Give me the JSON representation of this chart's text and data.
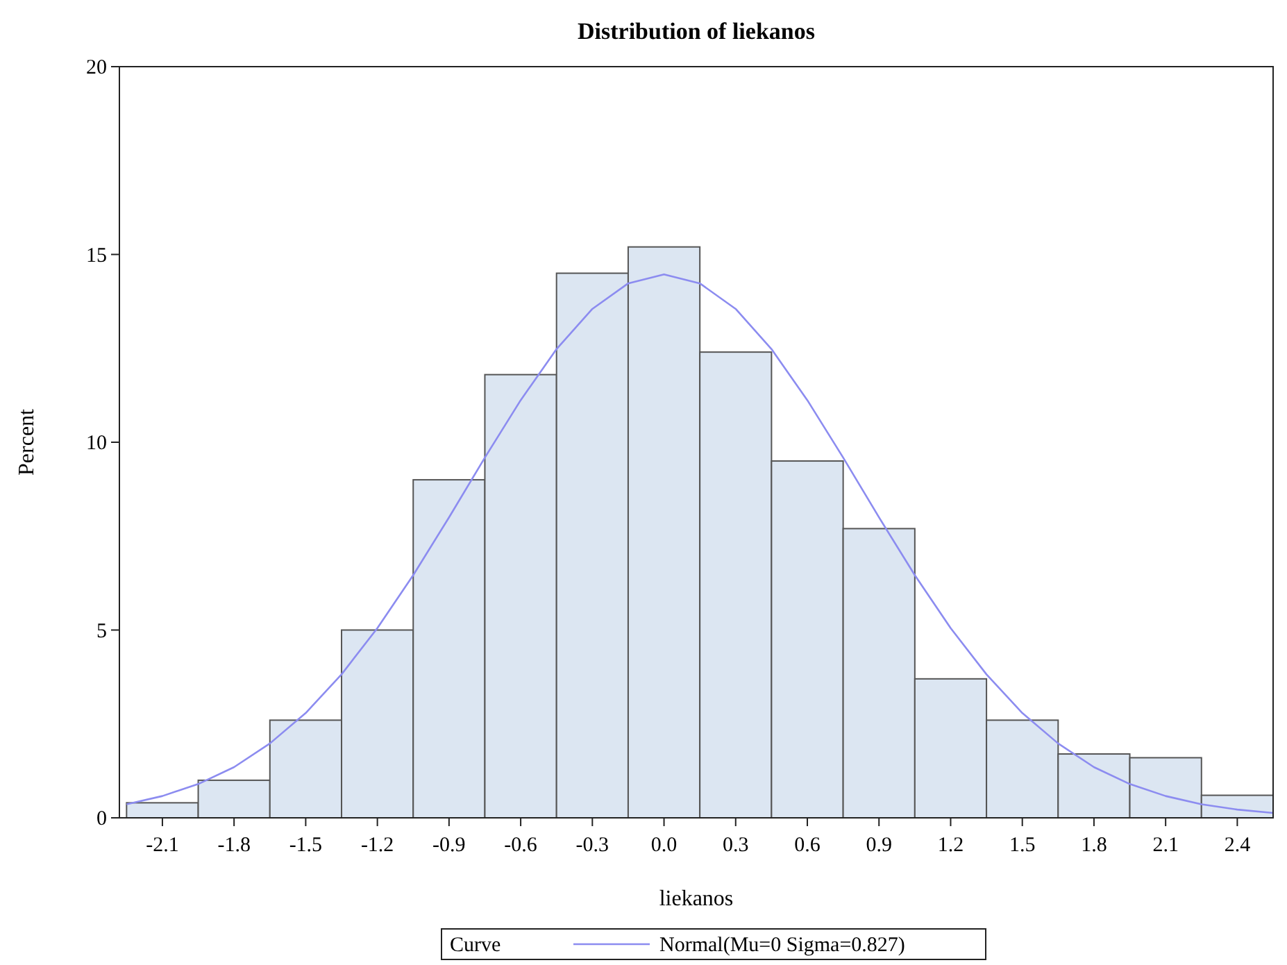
{
  "chart_data": {
    "type": "histogram",
    "title": "Distribution of liekanos",
    "xlabel": "liekanos",
    "ylabel": "Percent",
    "legend_title": "Curve",
    "legend": "bottom",
    "grid": false,
    "bins": [
      -2.25,
      -1.95,
      -1.65,
      -1.35,
      -1.05,
      -0.75,
      -0.45,
      -0.15,
      0.15,
      0.45,
      0.75,
      1.05,
      1.35,
      1.65,
      1.95,
      2.25,
      2.55
    ],
    "values": [
      0.4,
      1.0,
      2.6,
      5.0,
      9.0,
      11.8,
      14.5,
      15.2,
      12.4,
      9.5,
      7.7,
      3.7,
      2.6,
      1.7,
      1.6,
      0.6
    ],
    "color": "#dce6f2",
    "series": [
      {
        "type": "line",
        "name": "Normal(Mu=0 Sigma=0.827)",
        "color": "#8c8cf0",
        "x": [
          -2.25,
          -2.1,
          -1.95,
          -1.8,
          -1.65,
          -1.5,
          -1.35,
          -1.2,
          -1.05,
          -0.9,
          -0.75,
          -0.6,
          -0.45,
          -0.3,
          -0.15,
          0,
          0.15,
          0.3,
          0.45,
          0.6,
          0.75,
          0.9,
          1.05,
          1.2,
          1.35,
          1.5,
          1.65,
          1.8,
          1.95,
          2.1,
          2.25,
          2.4,
          2.55
        ],
        "values": [
          0.36,
          0.58,
          0.9,
          1.35,
          1.98,
          2.79,
          3.82,
          5.05,
          6.46,
          8.0,
          9.59,
          11.12,
          12.48,
          13.55,
          14.23,
          14.47,
          14.23,
          13.55,
          12.48,
          11.12,
          9.59,
          8.0,
          6.46,
          5.05,
          3.82,
          2.79,
          1.98,
          1.35,
          0.9,
          0.58,
          0.36,
          0.22,
          0.13
        ]
      }
    ],
    "xlim": [
      -2.28,
      2.55
    ],
    "ylim": [
      0,
      20
    ],
    "xticks": [
      -2.1,
      -1.8,
      -1.5,
      -1.2,
      -0.9,
      -0.6,
      -0.3,
      {
        "value": 0,
        "label": "0.0"
      },
      0.3,
      0.6,
      0.9,
      1.2,
      1.5,
      1.8,
      2.1,
      2.4
    ],
    "yticks": [
      0,
      5,
      10,
      15,
      20
    ]
  }
}
